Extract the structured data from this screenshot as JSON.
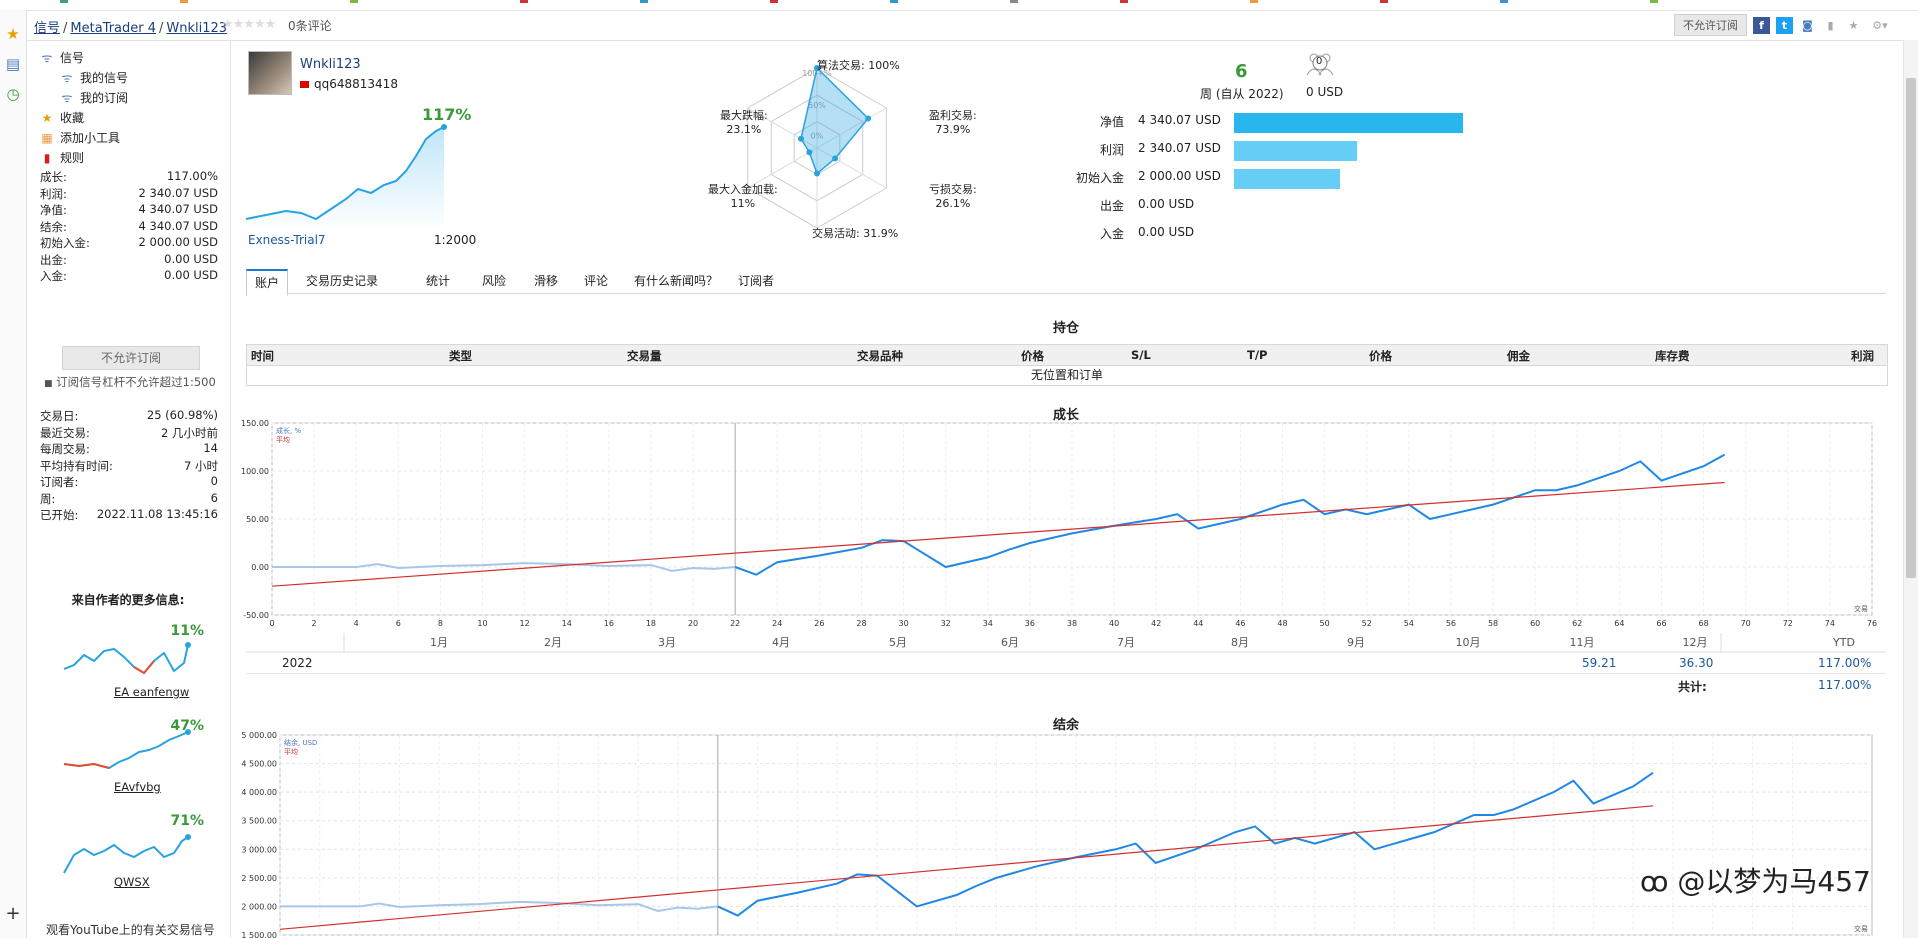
{
  "breadcrumb": [
    "信号",
    "MetaTrader 4",
    "Wnkli123"
  ],
  "rating": {
    "stars": "★★★★★",
    "reviews": "0条评论"
  },
  "header": {
    "no_subscribe_btn": "不允许订阅"
  },
  "nav": [
    "信号",
    "我的信号",
    "我的订阅",
    "收藏",
    "添加小工具",
    "规则"
  ],
  "stats": [
    {
      "k": "成长:",
      "v": "117.00%"
    },
    {
      "k": "利润:",
      "v": "2 340.07 USD"
    },
    {
      "k": "净值:",
      "v": "4 340.07 USD"
    },
    {
      "k": "结余:",
      "v": "4 340.07 USD"
    },
    {
      "k": "初始入金:",
      "v": "2 000.00 USD"
    },
    {
      "k": "出金:",
      "v": "0.00 USD"
    },
    {
      "k": "入金:",
      "v": "0.00 USD"
    }
  ],
  "subscribe_btn": "不允许订阅",
  "leverage_note": "订阅信号杠杆不允许超过1:500",
  "stats2": [
    {
      "k": "交易日:",
      "v": "25 (60.98%)"
    },
    {
      "k": "最近交易:",
      "v": "2 几小时前"
    },
    {
      "k": "每周交易:",
      "v": "14"
    },
    {
      "k": "平均持有时间:",
      "v": "7 小时"
    },
    {
      "k": "订阅者:",
      "v": "0"
    },
    {
      "k": "周:",
      "v": "6"
    },
    {
      "k": "已开始:",
      "v": "2022.11.08 13:45:16"
    }
  ],
  "more_title": "来自作者的更多信息:",
  "more_signals": [
    {
      "pct": "11%",
      "name": "EA eanfengw"
    },
    {
      "pct": "47%",
      "name": "EAvfvbg"
    },
    {
      "pct": "71%",
      "name": "QWSX"
    }
  ],
  "youtube": "观看YouTube上的有关交易信号",
  "profile": {
    "name": "Wnkli123",
    "sub": "qq648813418",
    "growth": "117%",
    "account": "Exness-Trial7",
    "leverage": "1:2000"
  },
  "radar": [
    {
      "label": "算法交易",
      "value": "100%"
    },
    {
      "label": "盈利交易",
      "value": "73.9%"
    },
    {
      "label": "亏损交易",
      "value": "26.1%"
    },
    {
      "label": "交易活动",
      "value": "31.9%"
    },
    {
      "label": "最大入金加载",
      "value": "11%"
    },
    {
      "label": "最大跌幅",
      "value": "23.1%"
    }
  ],
  "radar_ticks": [
    "100+%",
    "50%",
    "0%"
  ],
  "weeks": {
    "num": "6",
    "label": "周 (自从 2022)"
  },
  "subscribers": {
    "num": "0",
    "label": "0 USD"
  },
  "bars": [
    {
      "k": "净值",
      "v": "4 340.07 USD",
      "frac": 1.0,
      "color": "#29b6ee"
    },
    {
      "k": "利润",
      "v": "2 340.07 USD",
      "frac": 0.539,
      "color": "#66cef4"
    },
    {
      "k": "初始入金",
      "v": "2 000.00 USD",
      "frac": 0.461,
      "color": "#66cef4"
    },
    {
      "k": "出金",
      "v": "0.00 USD",
      "frac": 0,
      "color": "#66cef4"
    },
    {
      "k": "入金",
      "v": "0.00 USD",
      "frac": 0,
      "color": "#66cef4"
    }
  ],
  "tabs": [
    "账户",
    "交易历史记录",
    "统计",
    "风险",
    "滑移",
    "评论",
    "有什么新闻吗？",
    "订阅者"
  ],
  "positions": {
    "title": "持仓",
    "cols": [
      "时间",
      "类型",
      "交易量",
      "交易品种",
      "价格",
      "S/L",
      "T/P",
      "价格",
      "佣金",
      "库存费",
      "利润"
    ],
    "empty": "无位置和订单"
  },
  "growth_chart": {
    "title": "成长",
    "legend": [
      "成长, %",
      "平均"
    ],
    "yticks": [
      "150.00",
      "100.00",
      "50.00",
      "0.00",
      "-50.00"
    ],
    "xticks": [
      "0",
      "2",
      "4",
      "6",
      "8",
      "10",
      "12",
      "14",
      "16",
      "18",
      "20",
      "22",
      "24",
      "26",
      "28",
      "30",
      "32",
      "34",
      "36",
      "38",
      "40",
      "42",
      "44",
      "46",
      "48",
      "50",
      "52",
      "54",
      "56",
      "58",
      "60",
      "62",
      "64",
      "66",
      "68",
      "70",
      "72",
      "74",
      "76"
    ],
    "months": [
      "1月",
      "2月",
      "3月",
      "4月",
      "5月",
      "6月",
      "7月",
      "8月",
      "9月",
      "10月",
      "11月",
      "12月",
      "YTD"
    ],
    "corner": "交易"
  },
  "year_table": {
    "year": "2022",
    "nov": "59.21",
    "dec": "36.30",
    "ytd": "117.00%",
    "total_label": "共计:",
    "total": "117.00%"
  },
  "balance_chart": {
    "title": "结余",
    "legend": [
      "结余, USD",
      "平均"
    ],
    "yticks": [
      "5 000.00",
      "4 500.00",
      "4 000.00",
      "3 500.00",
      "3 000.00",
      "2 500.00",
      "2 000.00",
      "1 500.00"
    ],
    "corner": "交易"
  },
  "chart_data": [
    {
      "type": "line",
      "title": "成长",
      "ylim": [
        -50,
        150
      ],
      "xlim": [
        0,
        76
      ],
      "series": [
        {
          "name": "成长, %",
          "x": [
            0,
            2,
            4,
            5,
            6,
            8,
            10,
            12,
            14,
            16,
            18,
            19,
            20,
            21,
            22,
            23,
            24,
            26,
            28,
            29,
            30,
            32,
            34,
            35,
            36,
            38,
            40,
            42,
            43,
            44,
            46,
            48,
            49,
            50,
            51,
            52,
            54,
            55,
            56,
            58,
            60,
            61,
            62,
            64,
            65,
            66,
            68,
            69
          ],
          "y": [
            0,
            0,
            0,
            3,
            -1,
            1,
            2,
            4,
            3,
            1,
            2,
            -4,
            -1,
            -2,
            0,
            -8,
            5,
            12,
            20,
            28,
            27,
            0,
            10,
            18,
            25,
            35,
            43,
            50,
            55,
            40,
            50,
            65,
            70,
            55,
            60,
            55,
            65,
            50,
            55,
            65,
            80,
            80,
            85,
            100,
            110,
            90,
            105,
            117
          ]
        },
        {
          "name": "平均",
          "x": [
            0,
            69
          ],
          "y": [
            -20,
            88
          ]
        }
      ]
    },
    {
      "type": "line",
      "title": "结余",
      "ylim": [
        1500,
        5000
      ],
      "series": [
        {
          "name": "结余, USD",
          "x": [
            0,
            2,
            4,
            5,
            6,
            8,
            10,
            12,
            14,
            16,
            18,
            19,
            20,
            21,
            22,
            23,
            24,
            26,
            28,
            29,
            30,
            32,
            34,
            35,
            36,
            38,
            40,
            42,
            43,
            44,
            46,
            48,
            49,
            50,
            51,
            52,
            54,
            55,
            56,
            58,
            60,
            61,
            62,
            64,
            65,
            66,
            68,
            69
          ],
          "y": [
            2000,
            2000,
            2000,
            2050,
            1990,
            2020,
            2040,
            2080,
            2060,
            2020,
            2040,
            1920,
            1980,
            1960,
            2000,
            1840,
            2100,
            2240,
            2400,
            2560,
            2540,
            2000,
            2200,
            2360,
            2500,
            2700,
            2860,
            3000,
            3100,
            2760,
            3000,
            3300,
            3400,
            3100,
            3200,
            3100,
            3300,
            3000,
            3100,
            3300,
            3600,
            3600,
            3700,
            4000,
            4200,
            3800,
            4100,
            4340
          ]
        },
        {
          "name": "平均",
          "x": [
            0,
            69
          ],
          "y": [
            1600,
            3760
          ]
        }
      ]
    }
  ]
}
